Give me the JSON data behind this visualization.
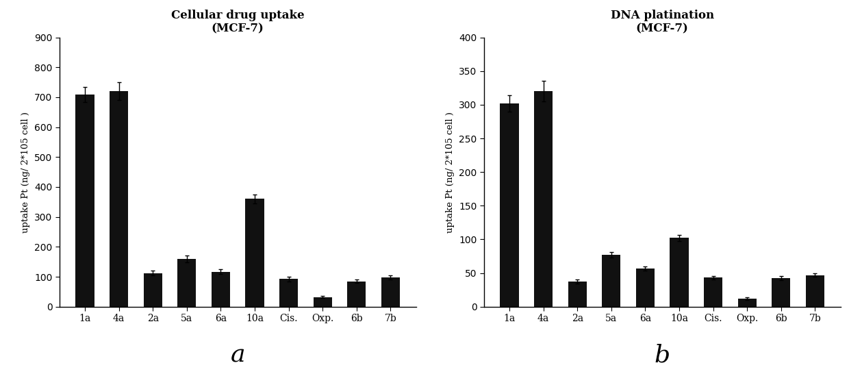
{
  "left": {
    "title": "Cellular drug uptake\n(MCF-7)",
    "ylabel": "uptake Pt (ng/ 2*105 cell )",
    "categories": [
      "1a",
      "4a",
      "2a",
      "5a",
      "6a",
      "10a",
      "Cis.",
      "Oxp.",
      "6b",
      "7b"
    ],
    "values": [
      710,
      720,
      112,
      160,
      117,
      360,
      93,
      32,
      85,
      98
    ],
    "errors": [
      25,
      30,
      8,
      12,
      8,
      15,
      8,
      4,
      6,
      7
    ],
    "ylim": [
      0,
      900
    ],
    "yticks": [
      0,
      100,
      200,
      300,
      400,
      500,
      600,
      700,
      800,
      900
    ],
    "label": "a"
  },
  "right": {
    "title": "DNA platination\n(MCF-7)",
    "ylabel": "uptake Pt (ng/ 2*105 cell )",
    "categories": [
      "1a",
      "4a",
      "2a",
      "5a",
      "6a",
      "10a",
      "Cis.",
      "Oxp.",
      "6b",
      "7b"
    ],
    "values": [
      302,
      320,
      37,
      77,
      57,
      102,
      43,
      12,
      42,
      47
    ],
    "errors": [
      12,
      15,
      3,
      4,
      3,
      5,
      3,
      2,
      3,
      3
    ],
    "ylim": [
      0,
      400
    ],
    "yticks": [
      0,
      50,
      100,
      150,
      200,
      250,
      300,
      350,
      400
    ],
    "label": "b"
  },
  "bar_color": "#111111",
  "bar_width": 0.55,
  "background_color": "#ffffff",
  "label_fontsize": 26,
  "title_fontsize": 12,
  "ylabel_fontsize": 9.5,
  "tick_fontsize": 10
}
